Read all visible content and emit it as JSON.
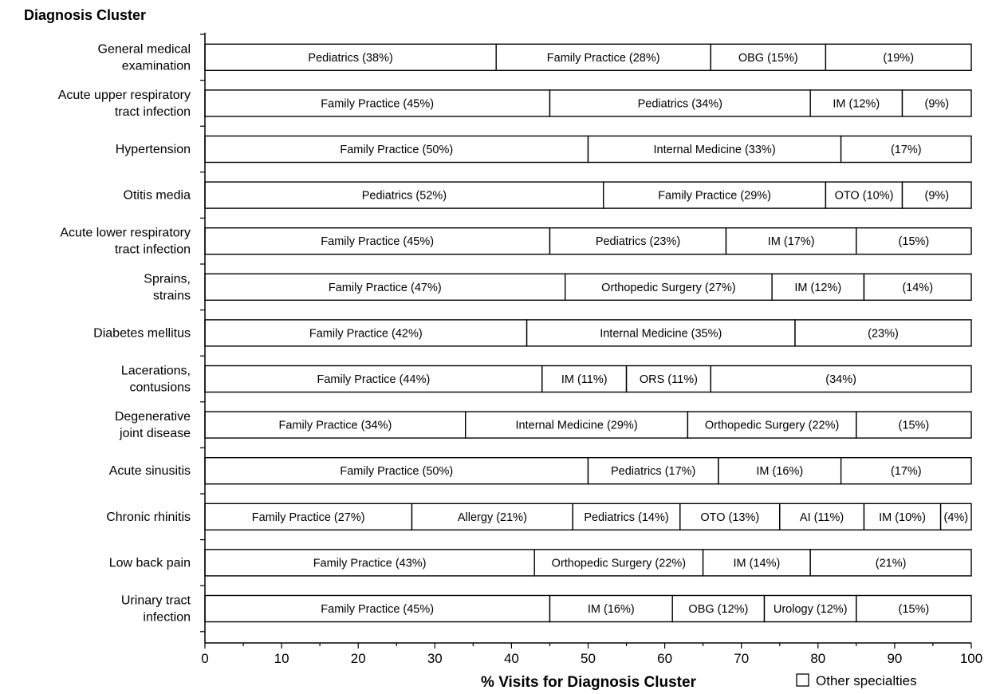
{
  "chart_data": {
    "type": "bar",
    "orientation": "horizontal",
    "stacked": true,
    "title": "Diagnosis Cluster",
    "xlabel": "% Visits for Diagnosis Cluster",
    "ylabel": "",
    "xlim": [
      0,
      100
    ],
    "xticks": [
      "0",
      "10",
      "20",
      "30",
      "40",
      "50",
      "60",
      "70",
      "80",
      "90",
      "100"
    ],
    "grid": false,
    "legend": [
      {
        "label": "Other specialties",
        "marker": "empty-box",
        "position": "bottom-right"
      }
    ],
    "categories": [
      {
        "label": "General medical\nexamination",
        "segments": [
          {
            "label": "Pediatrics (38%)",
            "value": 38
          },
          {
            "label": "Family Practice (28%)",
            "value": 28
          },
          {
            "label": "OBG (15%)",
            "value": 15
          },
          {
            "label": "(19%)",
            "value": 19
          }
        ]
      },
      {
        "label": "Acute upper respiratory\ntract infection",
        "segments": [
          {
            "label": "Family Practice (45%)",
            "value": 45
          },
          {
            "label": "Pediatrics (34%)",
            "value": 34
          },
          {
            "label": "IM (12%)",
            "value": 12
          },
          {
            "label": "(9%)",
            "value": 9
          }
        ]
      },
      {
        "label": "Hypertension",
        "segments": [
          {
            "label": "Family Practice (50%)",
            "value": 50
          },
          {
            "label": "Internal Medicine (33%)",
            "value": 33
          },
          {
            "label": "(17%)",
            "value": 17
          }
        ]
      },
      {
        "label": "Otitis media",
        "segments": [
          {
            "label": "Pediatrics (52%)",
            "value": 52
          },
          {
            "label": "Family Practice (29%)",
            "value": 29
          },
          {
            "label": "OTO (10%)",
            "value": 10
          },
          {
            "label": "(9%)",
            "value": 9
          }
        ]
      },
      {
        "label": "Acute lower respiratory\ntract infection",
        "segments": [
          {
            "label": "Family Practice (45%)",
            "value": 45
          },
          {
            "label": "Pediatrics (23%)",
            "value": 23
          },
          {
            "label": "IM (17%)",
            "value": 17
          },
          {
            "label": "(15%)",
            "value": 15
          }
        ]
      },
      {
        "label": "Sprains,\nstrains",
        "segments": [
          {
            "label": "Family Practice (47%)",
            "value": 47
          },
          {
            "label": "Orthopedic Surgery (27%)",
            "value": 27
          },
          {
            "label": "IM (12%)",
            "value": 12
          },
          {
            "label": "(14%)",
            "value": 14
          }
        ]
      },
      {
        "label": "Diabetes mellitus",
        "segments": [
          {
            "label": "Family Practice (42%)",
            "value": 42
          },
          {
            "label": "Internal Medicine (35%)",
            "value": 35
          },
          {
            "label": "(23%)",
            "value": 23
          }
        ]
      },
      {
        "label": "Lacerations,\ncontusions",
        "segments": [
          {
            "label": "Family Practice (44%)",
            "value": 44
          },
          {
            "label": "IM (11%)",
            "value": 11
          },
          {
            "label": "ORS (11%)",
            "value": 11
          },
          {
            "label": "(34%)",
            "value": 34
          }
        ]
      },
      {
        "label": "Degenerative\njoint disease",
        "segments": [
          {
            "label": "Family Practice (34%)",
            "value": 34
          },
          {
            "label": "Internal Medicine (29%)",
            "value": 29
          },
          {
            "label": "Orthopedic Surgery (22%)",
            "value": 22
          },
          {
            "label": "(15%)",
            "value": 15
          }
        ]
      },
      {
        "label": "Acute sinusitis",
        "segments": [
          {
            "label": "Family Practice (50%)",
            "value": 50
          },
          {
            "label": "Pediatrics (17%)",
            "value": 17
          },
          {
            "label": "IM (16%)",
            "value": 16
          },
          {
            "label": "(17%)",
            "value": 17
          }
        ]
      },
      {
        "label": "Chronic rhinitis",
        "segments": [
          {
            "label": "Family Practice (27%)",
            "value": 27
          },
          {
            "label": "Allergy (21%)",
            "value": 21
          },
          {
            "label": "Pediatrics (14%)",
            "value": 14
          },
          {
            "label": "OTO (13%)",
            "value": 13
          },
          {
            "label": "AI (11%)",
            "value": 11
          },
          {
            "label": "IM (10%)",
            "value": 10
          },
          {
            "label": "(4%)",
            "value": 4
          }
        ]
      },
      {
        "label": "Low back pain",
        "segments": [
          {
            "label": "Family Practice (43%)",
            "value": 43
          },
          {
            "label": "Orthopedic Surgery (22%)",
            "value": 22
          },
          {
            "label": "IM (14%)",
            "value": 14
          },
          {
            "label": "(21%)",
            "value": 21
          }
        ]
      },
      {
        "label": "Urinary tract\ninfection",
        "segments": [
          {
            "label": "Family Practice (45%)",
            "value": 45
          },
          {
            "label": "IM (16%)",
            "value": 16
          },
          {
            "label": "OBG (12%)",
            "value": 12
          },
          {
            "label": "Urology (12%)",
            "value": 12
          },
          {
            "label": "(15%)",
            "value": 15
          }
        ]
      }
    ]
  }
}
